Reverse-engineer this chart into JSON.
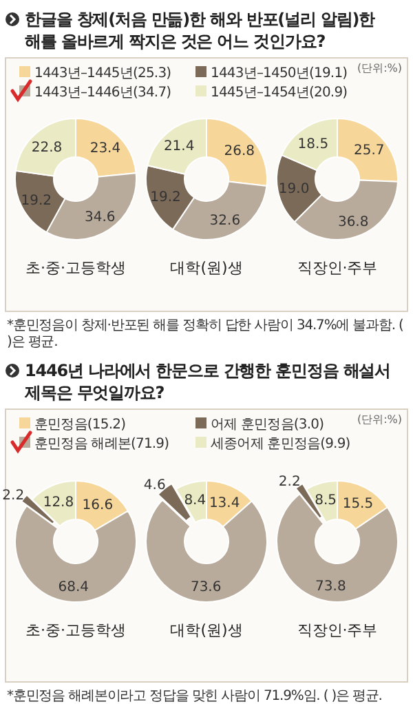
{
  "chart_data": [
    {
      "type": "donut",
      "title": "한글을 창제(처음 만듦)한 해와 반포(널리 알림)한 해를 올바르게 짝지은 것은 어느 것인가요?",
      "xlabel": "초·중·고등학생",
      "legend": "top",
      "annotations": [
        "(단위:%)",
        "*훈민정음이 창제·반포된 해를 정확히 답한 사람이 34.7%에 불과함. ( )은 평균."
      ],
      "categories": [
        "1443년–1445년(25.3)",
        "1443년–1446년(34.7)",
        "1443년–1450년(19.1)",
        "1445년–1454년(20.9)"
      ],
      "colors": [
        "#f7d69a",
        "#b9ab9b",
        "#7c6a59",
        "#eaeac4"
      ],
      "values": [
        23.4,
        34.6,
        19.2,
        22.8
      ],
      "value_labels": [
        "23.4",
        "34.6",
        "19.2",
        "22.8"
      ]
    },
    {
      "type": "donut",
      "xlabel": "대학(원)생",
      "colors": [
        "#f7d69a",
        "#b9ab9b",
        "#7c6a59",
        "#eaeac4"
      ],
      "values": [
        26.8,
        32.6,
        19.2,
        21.4
      ],
      "value_labels": [
        "26.8",
        "32.6",
        "19.2",
        "21.4"
      ]
    },
    {
      "type": "donut",
      "xlabel": "직장인·주부",
      "colors": [
        "#f7d69a",
        "#b9ab9b",
        "#7c6a59",
        "#eaeac4"
      ],
      "values": [
        25.7,
        36.8,
        19.0,
        18.5
      ],
      "value_labels": [
        "25.7",
        "36.8",
        "19.0",
        "18.5"
      ]
    },
    {
      "type": "donut",
      "title": "1446년 나라에서 한문으로 간행한 훈민정음 해설서 제목은 무엇일까요?",
      "xlabel": "초·중·고등학생",
      "legend": "top",
      "annotations": [
        "(단위:%)",
        "*훈민정음 해례본이라고 정답을 맞힌 사람이 71.9%임. ( )은 평균."
      ],
      "categories": [
        "훈민정음(15.2)",
        "훈민정음 해례본(71.9)",
        "어제 훈민정음(3.0)",
        "세종어제 훈민정음(9.9)"
      ],
      "colors": [
        "#f7d69a",
        "#b9ab9b",
        "#7c6a59",
        "#eaeac4"
      ],
      "values": [
        16.6,
        68.4,
        2.2,
        12.8
      ],
      "value_labels": [
        "16.6",
        "68.4",
        "2.2",
        "12.8"
      ]
    },
    {
      "type": "donut",
      "xlabel": "대학(원)생",
      "colors": [
        "#f7d69a",
        "#b9ab9b",
        "#7c6a59",
        "#eaeac4"
      ],
      "values": [
        13.4,
        73.6,
        4.6,
        8.4
      ],
      "value_labels": [
        "13.4",
        "73.6",
        "4.6",
        "8.4"
      ]
    },
    {
      "type": "donut",
      "xlabel": "직장인·주부",
      "colors": [
        "#f7d69a",
        "#b9ab9b",
        "#7c6a59",
        "#eaeac4"
      ],
      "values": [
        15.5,
        73.8,
        2.2,
        8.5
      ],
      "value_labels": [
        "15.5",
        "73.8",
        "2.2",
        "8.5"
      ]
    }
  ]
}
